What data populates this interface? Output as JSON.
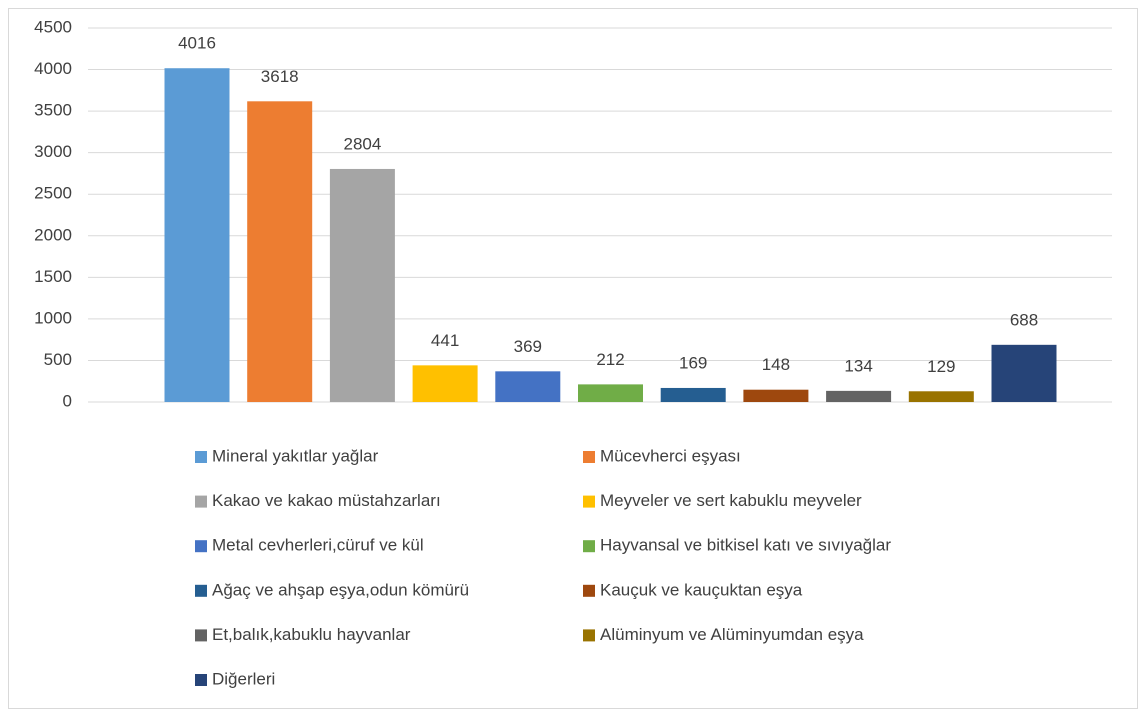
{
  "chart_data": {
    "type": "bar",
    "series": [
      {
        "name": "Mineral yakıtlar yağlar",
        "color": "#5b9bd5",
        "values": [
          4016
        ]
      },
      {
        "name": "Mücevherci eşyası",
        "color": "#ed7d31",
        "values": [
          3618
        ]
      },
      {
        "name": "Kakao ve kakao müstahzarları",
        "color": "#a5a5a5",
        "values": [
          2804
        ]
      },
      {
        "name": "Meyveler ve sert kabuklu meyveler",
        "color": "#ffc000",
        "values": [
          441
        ]
      },
      {
        "name": "Metal cevherleri,cüruf ve kül",
        "color": "#4472c4",
        "values": [
          369
        ]
      },
      {
        "name": "Hayvansal ve bitkisel katı ve sıvıyağlar",
        "color": "#70ad47",
        "values": [
          212
        ]
      },
      {
        "name": "Ağaç ve ahşap eşya,odun kömürü",
        "color": "#255e91",
        "values": [
          169
        ]
      },
      {
        "name": "Kauçuk ve kauçuktan eşya",
        "color": "#9e480e",
        "values": [
          148
        ]
      },
      {
        "name": "Et,balık,kabuklu hayvanlar",
        "color": "#636363",
        "values": [
          134
        ]
      },
      {
        "name": "Alüminyum ve Alüminyumdan eşya",
        "color": "#997300",
        "values": [
          129
        ]
      },
      {
        "name": "Diğerleri",
        "color": "#264478",
        "values": [
          688
        ]
      }
    ],
    "ylim": [
      0,
      4500
    ],
    "yticks": [
      0,
      500,
      1000,
      1500,
      2000,
      2500,
      3000,
      3500,
      4000,
      4500
    ],
    "grid": true,
    "legend": "bottom"
  }
}
